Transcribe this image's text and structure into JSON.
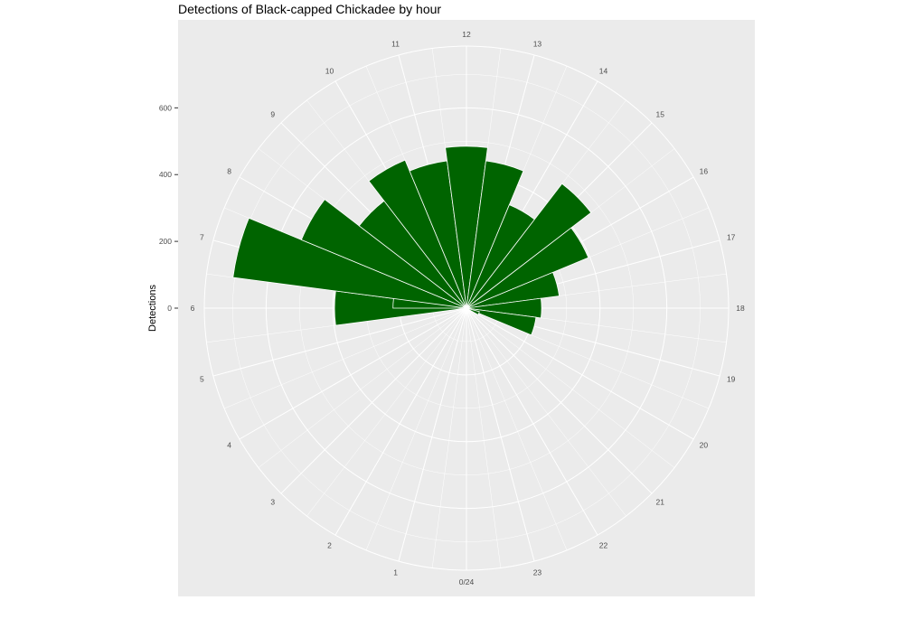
{
  "chart_data": {
    "type": "bar",
    "coordinate": "polar",
    "title": "Detections of Black-capped Chickadee by hour",
    "ylabel": "Detections",
    "xlabel": "",
    "categories": [
      "0/24",
      "1",
      "2",
      "3",
      "4",
      "5",
      "6",
      "7",
      "8",
      "9",
      "10",
      "11",
      "12",
      "13",
      "14",
      "15",
      "16",
      "17",
      "18",
      "19",
      "20",
      "21",
      "22",
      "23"
    ],
    "values": [
      0,
      0,
      0,
      0,
      0,
      0,
      0,
      0,
      0,
      0,
      0,
      0,
      0,
      0,
      0,
      0,
      0,
      0,
      0,
      0,
      0,
      0,
      0,
      0
    ],
    "bars": [
      {
        "hour": 6.0,
        "value": 395
      },
      {
        "hour": 6.5,
        "value": 220
      },
      {
        "hour": 7.0,
        "value": 705
      },
      {
        "hour": 8.0,
        "value": 535
      },
      {
        "hour": 9.0,
        "value": 405
      },
      {
        "hour": 10.0,
        "value": 480
      },
      {
        "hour": 11.0,
        "value": 445
      },
      {
        "hour": 12.0,
        "value": 485
      },
      {
        "hour": 13.0,
        "value": 445
      },
      {
        "hour": 14.0,
        "value": 335
      },
      {
        "hour": 15.0,
        "value": 470
      },
      {
        "hour": 16.0,
        "value": 395
      },
      {
        "hour": 17.0,
        "value": 280
      },
      {
        "hour": 18.0,
        "value": 225
      },
      {
        "hour": 19.0,
        "value": 210
      },
      {
        "hour": 19.5,
        "value": 40
      }
    ],
    "yticks": [
      0,
      200,
      400,
      600
    ],
    "ylim": [
      0,
      785
    ],
    "xlim": [
      0,
      24
    ],
    "grid": true,
    "colors": {
      "bar": "#006400",
      "panel": "#ebebeb",
      "grid": "#ffffff"
    }
  }
}
